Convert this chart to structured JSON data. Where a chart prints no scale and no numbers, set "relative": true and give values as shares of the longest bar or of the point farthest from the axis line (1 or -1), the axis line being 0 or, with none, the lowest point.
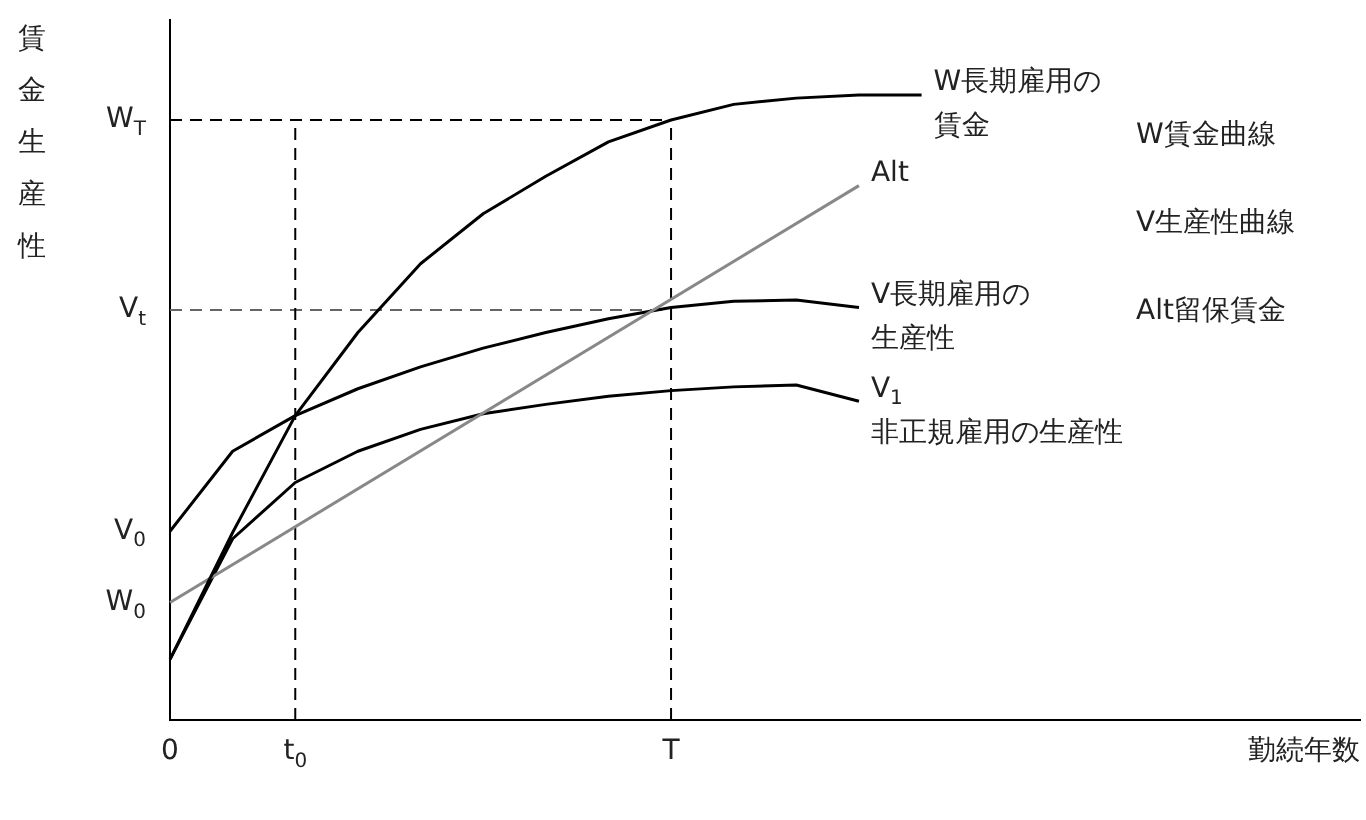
{
  "chart_data": {
    "type": "line",
    "relative": true,
    "xlabel": "勤続年数",
    "ylabel": "賃金生産性",
    "categories": [
      "0",
      null,
      "t$_{0}$",
      null,
      null,
      null,
      null,
      null,
      "T",
      null,
      null,
      null,
      null,
      null,
      null,
      null,
      null,
      null,
      null,
      null
    ],
    "series": [
      {
        "name": "W長期雇用の賃金",
        "color": "#000000",
        "values": [
          0.097,
          0.3,
          0.487,
          0.62,
          0.73,
          0.81,
          0.87,
          0.925,
          0.96,
          0.985,
          0.995,
          1,
          1,
          null,
          null,
          null,
          null,
          null,
          null,
          null
        ]
      },
      {
        "name": "Alt",
        "color": "#888888",
        "values": [
          0.188,
          null,
          null,
          null,
          null,
          null,
          null,
          null,
          null,
          null,
          null,
          0.855,
          null,
          null,
          null,
          null,
          null,
          null,
          null,
          null
        ]
      },
      {
        "name": "V長期雇用の生産性",
        "color": "#000000",
        "values": [
          0.302,
          0.43,
          0.487,
          0.53,
          0.565,
          0.595,
          0.62,
          0.642,
          0.66,
          0.67,
          0.672,
          0.66,
          null,
          null,
          null,
          null,
          null,
          null,
          null,
          null
        ]
      },
      {
        "name": "V$_{1}$\n非正規雇用の生産性",
        "color": "#000000",
        "values": [
          0.097,
          0.29,
          0.38,
          0.43,
          0.465,
          0.49,
          0.505,
          0.518,
          0.527,
          0.533,
          0.536,
          0.51,
          null,
          null,
          null,
          null,
          null,
          null,
          null,
          null
        ]
      }
    ],
    "ref_lines": [
      {
        "axis": "y",
        "value": 0.96,
        "label": "W$_{T}$",
        "line_style": "dashed",
        "color": "#000000"
      },
      {
        "axis": "y",
        "value": 0.656,
        "label": "V$_{t}$",
        "line_style": "dashed",
        "color": "#666666"
      },
      {
        "axis": "x",
        "value": "t$_{0}$",
        "line_style": "dashed",
        "color": "#000000"
      },
      {
        "axis": "x",
        "value": "T",
        "line_style": "dashed",
        "color": "#000000"
      }
    ],
    "annotations": [
      {
        "text": "V$_{0}$",
        "x": "0",
        "y": 0.302
      },
      {
        "text": "W$_{0}$",
        "x": "0",
        "y": 0.188
      },
      "W賃金曲線",
      "V生産性曲線",
      "Alt留保賃金"
    ],
    "marker": "none",
    "line_style": "solid",
    "grid": false,
    "legend": false
  }
}
